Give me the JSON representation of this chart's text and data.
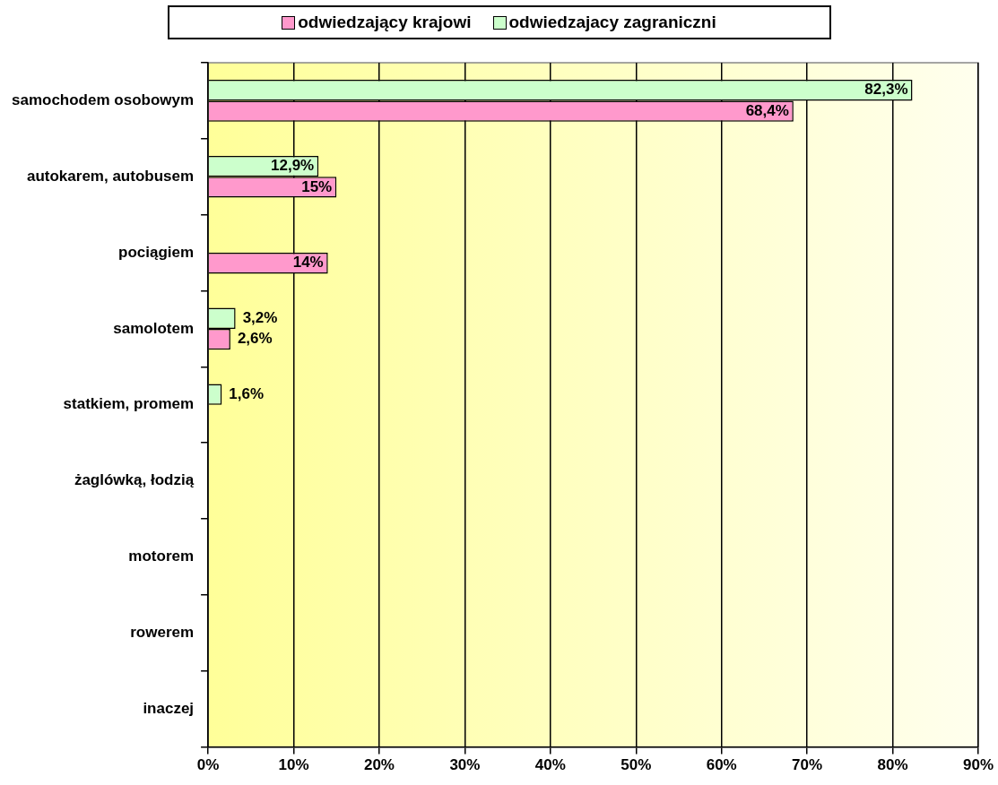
{
  "chart_data": {
    "type": "bar",
    "orientation": "horizontal",
    "categories": [
      "samochodem osobowym",
      "autokarem, autobusem",
      "pociągiem",
      "samolotem",
      "statkiem, promem",
      "żaglówką, łodzią",
      "motorem",
      "rowerem",
      "inaczej"
    ],
    "series": [
      {
        "name": "odwiedzający krajowi",
        "color": "#ff99cc",
        "values": [
          68.4,
          15,
          14,
          2.6,
          null,
          null,
          null,
          null,
          null
        ],
        "value_labels": [
          "68,4%",
          "15%",
          "14%",
          "2,6%",
          null,
          null,
          null,
          null,
          null
        ]
      },
      {
        "name": "odwiedzajacy zagraniczni",
        "color": "#ccffcc",
        "values": [
          82.3,
          12.9,
          null,
          3.2,
          1.6,
          null,
          null,
          null,
          null
        ],
        "value_labels": [
          "82,3%",
          "12,9%",
          null,
          "3,2%",
          "1,6%",
          null,
          null,
          null,
          null
        ]
      }
    ],
    "xlim": [
      0,
      90
    ],
    "xticks": [
      {
        "value": 0,
        "label": "0%"
      },
      {
        "value": 10,
        "label": "10%"
      },
      {
        "value": 20,
        "label": "20%"
      },
      {
        "value": 30,
        "label": "30%"
      },
      {
        "value": 40,
        "label": "40%"
      },
      {
        "value": 50,
        "label": "50%"
      },
      {
        "value": 60,
        "label": "60%"
      },
      {
        "value": 70,
        "label": "70%"
      },
      {
        "value": 80,
        "label": "80%"
      },
      {
        "value": 90,
        "label": "90%"
      }
    ],
    "grid": "x",
    "legend": "top"
  }
}
